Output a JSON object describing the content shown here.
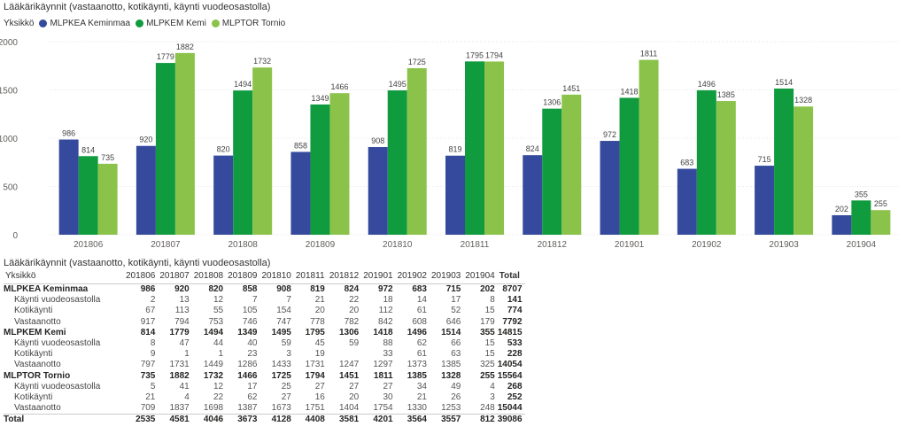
{
  "chart_data": {
    "type": "bar",
    "title": "Lääkärikäynnit (vastaanotto, kotikäynti, käynti vuodeosastolla)",
    "legend_title": "Yksikkö",
    "categories": [
      "201806",
      "201807",
      "201808",
      "201809",
      "201810",
      "201811",
      "201812",
      "201901",
      "201902",
      "201903",
      "201904"
    ],
    "series": [
      {
        "name": "MLPKEA Keminmaa",
        "color": "#354a9d",
        "values": [
          986,
          920,
          820,
          858,
          908,
          819,
          824,
          972,
          683,
          715,
          202
        ]
      },
      {
        "name": "MLPKEM Kemi",
        "color": "#0f9b3e",
        "values": [
          814,
          1779,
          1494,
          1349,
          1495,
          1795,
          1306,
          1418,
          1496,
          1514,
          355
        ]
      },
      {
        "name": "MLPTOR Tornio",
        "color": "#8bc34a",
        "values": [
          735,
          1882,
          1732,
          1466,
          1725,
          1794,
          1451,
          1811,
          1385,
          1328,
          255
        ]
      }
    ],
    "ylim": [
      0,
      2000
    ],
    "yticks": [
      0,
      500,
      1000,
      1500,
      2000
    ],
    "grid": true,
    "legend_position": "top-left"
  },
  "table": {
    "title": "Lääkärikäynnit (vastaanotto, kotikäynti, käynti vuodeosastolla)",
    "header": [
      "Yksikkö",
      "201806",
      "201807",
      "201808",
      "201809",
      "201810",
      "201811",
      "201812",
      "201901",
      "201902",
      "201903",
      "201904",
      "Total"
    ],
    "rows": [
      {
        "kind": "group",
        "label": "MLPKEA Keminmaa",
        "values": [
          "986",
          "920",
          "820",
          "858",
          "908",
          "819",
          "824",
          "972",
          "683",
          "715",
          "202"
        ],
        "total": "8707"
      },
      {
        "kind": "sub",
        "label": "Käynti vuodeosastolla",
        "values": [
          "2",
          "13",
          "12",
          "7",
          "7",
          "21",
          "22",
          "18",
          "14",
          "17",
          "8"
        ],
        "total": "141"
      },
      {
        "kind": "sub",
        "label": "Kotikäynti",
        "values": [
          "67",
          "113",
          "55",
          "105",
          "154",
          "20",
          "20",
          "112",
          "61",
          "52",
          "15"
        ],
        "total": "774"
      },
      {
        "kind": "sub",
        "label": "Vastaanotto",
        "values": [
          "917",
          "794",
          "753",
          "746",
          "747",
          "778",
          "782",
          "842",
          "608",
          "646",
          "179"
        ],
        "total": "7792"
      },
      {
        "kind": "group",
        "label": "MLPKEM Kemi",
        "values": [
          "814",
          "1779",
          "1494",
          "1349",
          "1495",
          "1795",
          "1306",
          "1418",
          "1496",
          "1514",
          "355"
        ],
        "total": "14815"
      },
      {
        "kind": "sub",
        "label": "Käynti vuodeosastolla",
        "values": [
          "8",
          "47",
          "44",
          "40",
          "59",
          "45",
          "59",
          "88",
          "62",
          "66",
          "15"
        ],
        "total": "533"
      },
      {
        "kind": "sub",
        "label": "Kotikäynti",
        "values": [
          "9",
          "1",
          "1",
          "23",
          "3",
          "19",
          "",
          "33",
          "61",
          "63",
          "15"
        ],
        "total": "228"
      },
      {
        "kind": "sub",
        "label": "Vastaanotto",
        "values": [
          "797",
          "1731",
          "1449",
          "1286",
          "1433",
          "1731",
          "1247",
          "1297",
          "1373",
          "1385",
          "325"
        ],
        "total": "14054"
      },
      {
        "kind": "group",
        "label": "MLPTOR Tornio",
        "values": [
          "735",
          "1882",
          "1732",
          "1466",
          "1725",
          "1794",
          "1451",
          "1811",
          "1385",
          "1328",
          "255"
        ],
        "total": "15564"
      },
      {
        "kind": "sub",
        "label": "Käynti vuodeosastolla",
        "values": [
          "5",
          "41",
          "12",
          "17",
          "25",
          "27",
          "27",
          "27",
          "34",
          "49",
          "4"
        ],
        "total": "268"
      },
      {
        "kind": "sub",
        "label": "Kotikäynti",
        "values": [
          "21",
          "4",
          "22",
          "62",
          "27",
          "16",
          "20",
          "30",
          "21",
          "26",
          "3"
        ],
        "total": "252"
      },
      {
        "kind": "sub",
        "label": "Vastaanotto",
        "values": [
          "709",
          "1837",
          "1698",
          "1387",
          "1673",
          "1751",
          "1404",
          "1754",
          "1330",
          "1253",
          "248"
        ],
        "total": "15044"
      },
      {
        "kind": "total-row",
        "label": "Total",
        "values": [
          "2535",
          "4581",
          "4046",
          "3673",
          "4128",
          "4408",
          "3581",
          "4201",
          "3564",
          "3557",
          "812"
        ],
        "total": "39086"
      }
    ]
  }
}
